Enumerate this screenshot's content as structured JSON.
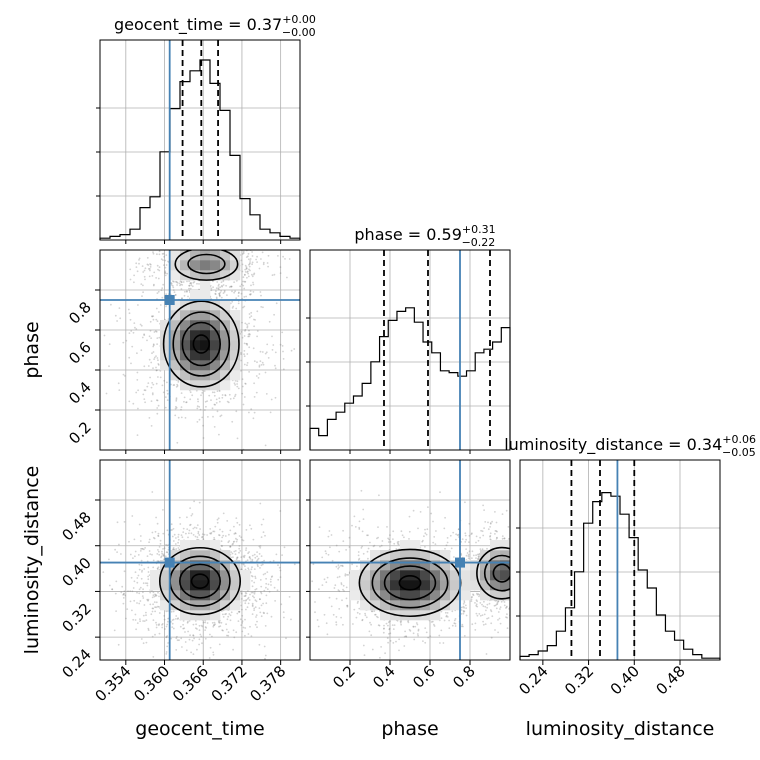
{
  "colors": {
    "truth": "#4682b4",
    "hist": "#000000",
    "scatter": "#808080"
  },
  "chart_data": {
    "type": "corner",
    "parameters": [
      {
        "name": "geocent_time",
        "range": [
          0.35,
          0.381
        ],
        "ticks": [
          0.354,
          0.36,
          0.366,
          0.372,
          0.378
        ],
        "tick_labels": [
          "0.354",
          "0.360",
          "0.366",
          "0.372",
          "0.378"
        ],
        "truth": 0.3608,
        "quantiles": [
          0.3628,
          0.3657,
          0.3683
        ],
        "title": {
          "main": "geocent_time = 0.37",
          "sup": "+0.00",
          "sub": "−0.00"
        },
        "hist": [
          0.01,
          0.02,
          0.03,
          0.06,
          0.18,
          0.24,
          0.49,
          0.73,
          0.88,
          0.94,
          1.0,
          0.87,
          0.72,
          0.47,
          0.23,
          0.14,
          0.06,
          0.04,
          0.02,
          0.01
        ]
      },
      {
        "name": "phase",
        "range": [
          0.0,
          1.0
        ],
        "ticks": [
          0.2,
          0.4,
          0.6,
          0.8
        ],
        "tick_labels": [
          "0.2",
          "0.4",
          "0.6",
          "0.8"
        ],
        "truth": 0.75,
        "quantiles": [
          0.37,
          0.59,
          0.9
        ],
        "title": {
          "main": "phase = 0.59",
          "sup": "+0.31",
          "sub": "−0.22"
        },
        "hist": [
          0.12,
          0.08,
          0.17,
          0.21,
          0.26,
          0.3,
          0.37,
          0.49,
          0.63,
          0.72,
          0.77,
          0.79,
          0.71,
          0.6,
          0.54,
          0.44,
          0.43,
          0.41,
          0.44,
          0.54,
          0.56,
          0.6,
          0.68
        ]
      },
      {
        "name": "luminosity_distance",
        "range": [
          0.2,
          0.55
        ],
        "ticks": [
          0.24,
          0.32,
          0.4,
          0.48
        ],
        "tick_labels": [
          "0.24",
          "0.32",
          "0.40",
          "0.48"
        ],
        "truth": 0.3705,
        "quantiles": [
          0.29,
          0.34,
          0.4
        ],
        "title": {
          "main": "luminosity_distance = 0.34",
          "sup": "+0.06",
          "sub": "−0.05"
        },
        "hist": [
          0.02,
          0.03,
          0.05,
          0.08,
          0.16,
          0.29,
          0.49,
          0.76,
          0.88,
          0.93,
          0.91,
          0.81,
          0.68,
          0.5,
          0.4,
          0.25,
          0.16,
          0.11,
          0.06,
          0.03,
          0.01,
          0.01
        ]
      }
    ],
    "axis_labels": {
      "x": [
        "geocent_time",
        "phase",
        "luminosity_distance"
      ],
      "y": [
        "phase",
        "luminosity_distance"
      ]
    },
    "grid": true,
    "joint": {
      "1_0": {
        "peaks": [
          {
            "x": 0.3657,
            "y": 0.53,
            "sx": 0.003,
            "sy": 0.11,
            "w": 1.0
          },
          {
            "x": 0.3665,
            "y": 0.93,
            "sx": 0.003,
            "sy": 0.05,
            "w": 0.55
          }
        ]
      },
      "2_0": {
        "peaks": [
          {
            "x": 0.3655,
            "y": 0.338,
            "sx": 0.0032,
            "sy": 0.03,
            "w": 1.0
          }
        ]
      },
      "2_1": {
        "peaks": [
          {
            "x": 0.5,
            "y": 0.335,
            "sx": 0.13,
            "sy": 0.03,
            "w": 1.0
          },
          {
            "x": 0.96,
            "y": 0.352,
            "sx": 0.07,
            "sy": 0.025,
            "w": 0.75
          }
        ]
      }
    }
  }
}
